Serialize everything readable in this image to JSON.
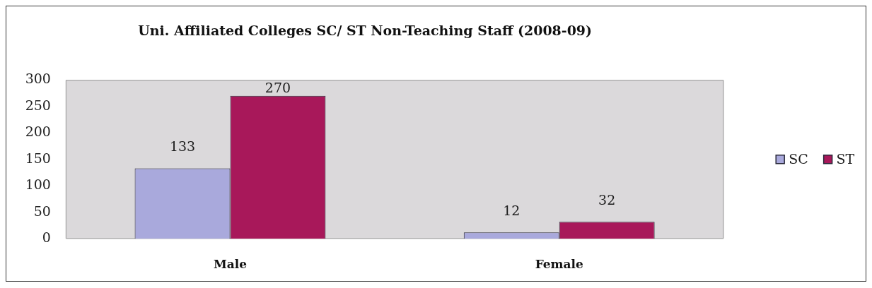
{
  "chart_data": {
    "type": "bar",
    "title": "Uni. Affiliated Colleges SC/ ST Non-Teaching Staff (2008-09)",
    "categories": [
      "Male",
      "Female"
    ],
    "series": [
      {
        "name": "SC",
        "color": "#a9a9dc",
        "values": [
          133,
          12
        ]
      },
      {
        "name": "ST",
        "color": "#a8185a",
        "values": [
          270,
          32
        ]
      }
    ],
    "ylim": [
      0,
      300
    ],
    "yticks": [
      0,
      50,
      100,
      150,
      200,
      250,
      300
    ],
    "data_labels": true,
    "legend": "right"
  }
}
